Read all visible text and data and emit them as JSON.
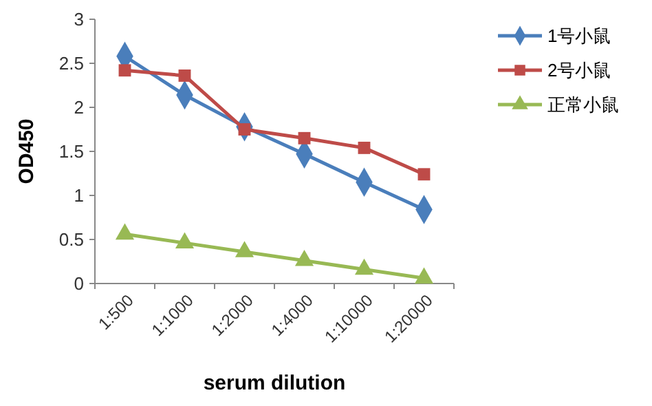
{
  "chart_data": {
    "type": "line",
    "xlabel": "serum dilution",
    "ylabel": "OD450",
    "categories": [
      "1:500",
      "1:1000",
      "1:2000",
      "1:4000",
      "1:10000",
      "1:20000"
    ],
    "ylim": [
      0,
      3
    ],
    "yticks": [
      0,
      0.5,
      1,
      1.5,
      2,
      2.5,
      3
    ],
    "grid": false,
    "legend": "right",
    "series": [
      {
        "name": "1号小鼠",
        "color": "#4a7ebb",
        "marker": "diamond",
        "values": [
          2.58,
          2.14,
          1.78,
          1.47,
          1.15,
          0.84
        ]
      },
      {
        "name": "2号小鼠",
        "color": "#be4b48",
        "marker": "square",
        "values": [
          2.42,
          2.36,
          1.75,
          1.65,
          1.54,
          1.24
        ]
      },
      {
        "name": "正常小鼠",
        "color": "#98b954",
        "marker": "triangle",
        "values": [
          0.56,
          0.46,
          0.36,
          0.26,
          0.16,
          0.06
        ]
      }
    ]
  }
}
